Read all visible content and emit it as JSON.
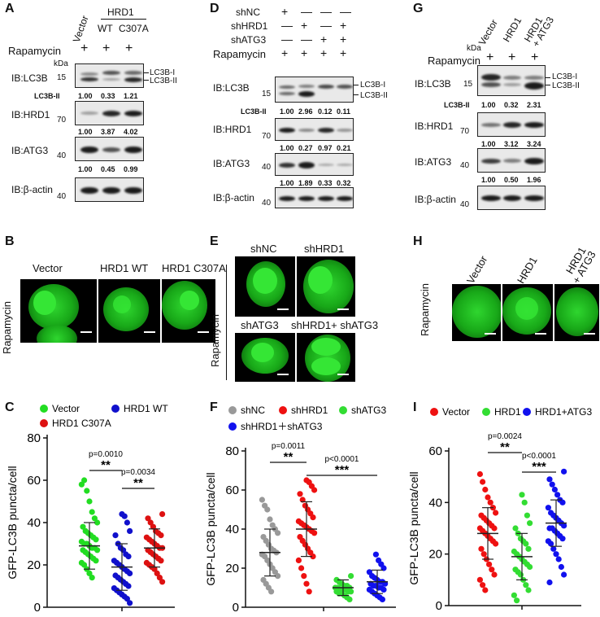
{
  "panels": {
    "A": {
      "letter": "A",
      "col_labels": [
        "Vector",
        "WT",
        "C307A"
      ],
      "group_label": "HRD1",
      "treatment": "Rapamycin",
      "plus": [
        "+",
        "+",
        "+"
      ],
      "kda": "kDa",
      "mw": [
        "15",
        "70",
        "40",
        "40"
      ],
      "blots": [
        "IB:LC3B",
        "IB:HRD1",
        "IB:ATG3",
        "IB:β-actin"
      ],
      "band_labels": [
        "LC3B-I",
        "LC3B-II"
      ],
      "lc3_label": "LC3B-II",
      "lc3_values": [
        "1.00",
        "0.33",
        "1.21"
      ],
      "hrd1_values": [
        "1.00",
        "3.87",
        "4.02"
      ],
      "atg3_values": [
        "1.00",
        "0.45",
        "0.99"
      ]
    },
    "D": {
      "letter": "D",
      "rows": [
        {
          "label": "shNC",
          "signs": [
            "+",
            "—",
            "—",
            "—"
          ]
        },
        {
          "label": "shHRD1",
          "signs": [
            "—",
            "+",
            "—",
            "+"
          ]
        },
        {
          "label": "shATG3",
          "signs": [
            "—",
            "—",
            "+",
            "+"
          ]
        },
        {
          "label": "Rapamycin",
          "signs": [
            "+",
            "+",
            "+",
            "+"
          ]
        }
      ],
      "mw": [
        "15",
        "70",
        "40",
        "40"
      ],
      "blots": [
        "IB:LC3B",
        "IB:HRD1",
        "IB:ATG3",
        "IB:β-actin"
      ],
      "band_labels": [
        "LC3B-I",
        "LC3B-II"
      ],
      "lc3_label": "LC3B-II",
      "lc3_values": [
        "1.00",
        "2.96",
        "0.12",
        "0.11"
      ],
      "hrd1_values": [
        "1.00",
        "0.27",
        "0.97",
        "0.21"
      ],
      "atg3_values": [
        "1.00",
        "1.89",
        "0.33",
        "0.32"
      ]
    },
    "G": {
      "letter": "G",
      "col_labels": [
        "Vector",
        "HRD1",
        "HRD1",
        "+ ATG3"
      ],
      "kda": "kDa",
      "treatment": "Rapamycin",
      "plus": [
        "+",
        "+",
        "+"
      ],
      "mw": [
        "15",
        "70",
        "40",
        "40"
      ],
      "blots": [
        "IB:LC3B",
        "IB:HRD1",
        "IB:ATG3",
        "IB:β-actin"
      ],
      "band_labels": [
        "LC3B-I",
        "LC3B-II"
      ],
      "lc3_label": "LC3B-II",
      "lc3_values": [
        "1.00",
        "0.32",
        "2.31"
      ],
      "hrd1_values": [
        "1.00",
        "3.12",
        "3.24"
      ],
      "atg3_values": [
        "1.00",
        "0.50",
        "1.96"
      ]
    },
    "B": {
      "letter": "B",
      "side": "Rapamycin",
      "labels": [
        "Vector",
        "HRD1 WT",
        "HRD1 C307A"
      ]
    },
    "E": {
      "letter": "E",
      "side": "Rapamycin",
      "labels": [
        "shNC",
        "shHRD1",
        "shATG3",
        "shHRD1+ shATG3"
      ]
    },
    "H": {
      "letter": "H",
      "side": "Rapamycin",
      "labels": [
        "Vector",
        "HRD1",
        "HRD1",
        "+ ATG3"
      ]
    }
  },
  "chart_data": [
    {
      "letter": "C",
      "type": "scatter",
      "ylabel": "GFP-LC3B puncta/cell",
      "ylim": [
        0,
        80
      ],
      "yticks": [
        "0",
        "20",
        "40",
        "60",
        "80"
      ],
      "series": [
        {
          "name": "Vector",
          "color": "#22dd22",
          "mean": 29,
          "sd": 11,
          "values": [
            58,
            60,
            55,
            50,
            45,
            42,
            40,
            38,
            36,
            35,
            34,
            33,
            32,
            31,
            30,
            30,
            29,
            28,
            28,
            27,
            27,
            26,
            25,
            24,
            23,
            22,
            21,
            20,
            18,
            16,
            14
          ]
        },
        {
          "name": "HRD1 WT",
          "color": "#1010cc",
          "mean": 19,
          "sd": 11,
          "values": [
            44,
            43,
            40,
            36,
            34,
            30,
            28,
            27,
            25,
            24,
            22,
            21,
            20,
            19,
            18,
            17,
            16,
            15,
            14,
            13,
            12,
            11,
            10,
            9,
            8,
            7,
            6,
            5,
            4,
            2
          ]
        },
        {
          "name": "HRD1  C307A",
          "color": "#dd1111",
          "mean": 28,
          "sd": 9,
          "values": [
            44,
            42,
            40,
            38,
            36,
            35,
            34,
            33,
            32,
            31,
            30,
            29,
            28,
            28,
            27,
            26,
            25,
            24,
            23,
            22,
            21,
            20,
            19,
            18,
            16,
            14,
            12
          ]
        }
      ],
      "comparisons": [
        {
          "p": "p=0.0010",
          "stars": "**"
        },
        {
          "p": "p=0.0034",
          "stars": "**"
        }
      ]
    },
    {
      "letter": "F",
      "type": "scatter",
      "ylabel": "GFP-LC3B puncta/cell",
      "ylim": [
        0,
        80
      ],
      "yticks": [
        "0",
        "20",
        "40",
        "60",
        "80"
      ],
      "series": [
        {
          "name": "shNC",
          "color": "#999999",
          "mean": 28,
          "sd": 12,
          "values": [
            55,
            52,
            50,
            45,
            42,
            40,
            38,
            36,
            34,
            32,
            30,
            29,
            28,
            27,
            26,
            24,
            22,
            20,
            18,
            16,
            14,
            12,
            10,
            8
          ]
        },
        {
          "name": "shHRD1",
          "color": "#ee1111",
          "mean": 40,
          "sd": 14,
          "values": [
            65,
            64,
            62,
            60,
            58,
            55,
            52,
            50,
            48,
            46,
            44,
            43,
            42,
            41,
            40,
            39,
            38,
            36,
            34,
            32,
            30,
            28,
            26,
            24,
            20,
            16,
            12,
            8
          ]
        },
        {
          "name": "shATG3",
          "color": "#33dd33",
          "mean": 10,
          "sd": 4,
          "values": [
            16,
            14,
            13,
            12,
            11,
            11,
            10,
            10,
            10,
            9,
            9,
            9,
            8,
            8,
            8,
            7,
            7,
            6,
            5,
            4
          ]
        },
        {
          "name": "shHRD1＋shATG3",
          "color": "#1111ee",
          "mean": 13,
          "sd": 6,
          "values": [
            27,
            24,
            22,
            20,
            18,
            16,
            15,
            14,
            13,
            13,
            12,
            12,
            11,
            11,
            10,
            10,
            9,
            9,
            8,
            7,
            6,
            5,
            4
          ]
        }
      ],
      "comparisons": [
        {
          "p": "p=0.0011",
          "stars": "**"
        },
        {
          "p": "p<0.0001",
          "stars": "***"
        }
      ]
    },
    {
      "letter": "I",
      "type": "scatter",
      "ylabel": "GFP-LC3B puncta/cell",
      "ylim": [
        0,
        60
      ],
      "yticks": [
        "0",
        "20",
        "40",
        "60"
      ],
      "series": [
        {
          "name": "Vector",
          "color": "#ee1111",
          "mean": 28,
          "sd": 10,
          "values": [
            51,
            48,
            45,
            42,
            40,
            38,
            36,
            35,
            34,
            33,
            32,
            31,
            30,
            30,
            29,
            28,
            27,
            26,
            25,
            24,
            22,
            20,
            18,
            16,
            14,
            12,
            10,
            8,
            6
          ]
        },
        {
          "name": "HRD1",
          "color": "#33dd33",
          "mean": 19,
          "sd": 9,
          "values": [
            43,
            40,
            35,
            32,
            30,
            28,
            26,
            25,
            24,
            22,
            21,
            20,
            19,
            18,
            17,
            16,
            15,
            14,
            13,
            12,
            10,
            8,
            6,
            4,
            2
          ]
        },
        {
          "name": "HRD1+ATG3",
          "color": "#1111ee",
          "mean": 32,
          "sd": 9,
          "values": [
            52,
            49,
            47,
            45,
            43,
            41,
            40,
            38,
            36,
            35,
            34,
            33,
            32,
            31,
            30,
            30,
            29,
            28,
            27,
            26,
            25,
            24,
            22,
            20,
            18,
            15,
            12,
            9
          ]
        }
      ],
      "comparisons": [
        {
          "p": "p=0.0024",
          "stars": "**"
        },
        {
          "p": "p<0.0001",
          "stars": "***"
        }
      ]
    }
  ]
}
